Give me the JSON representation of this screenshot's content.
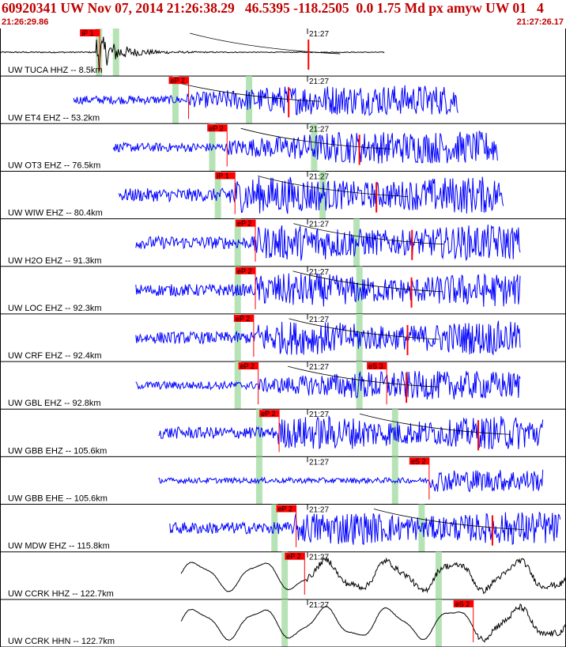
{
  "header": {
    "title": "60920341 UW Nov 07, 2014 21:26:38.29   46.5395 -118.2505  0.0 1.75 Md px amyw UW 01   4",
    "start_time": "21:26:29.86",
    "end_time": "21:27:26.17"
  },
  "colors": {
    "header_text": "#c00000",
    "trace_primary": "#000000",
    "trace_vertical": "#0000ff",
    "pick_flag": "#ff0000",
    "phase_window": "#b6e3b6",
    "panel_border": "#000000"
  },
  "chart_data": {
    "type": "line",
    "title": "60920341 UW Nov 07, 2014 21:26:38.29   46.5395 -118.2505  0.0 1.75 Md px amyw UW 01   4",
    "x_range": [
      "21:26:29.86",
      "21:27:26.17"
    ],
    "minute_mark": "21:27",
    "traces": [
      {
        "label": "UW TUCA HHZ -- 8.5km",
        "color": "black",
        "start": 0.0,
        "end": 0.68,
        "onset": 0.17,
        "amp": 0.42,
        "style": "impulse",
        "picks": [
          {
            "text": "iP 1",
            "pos": 0.158
          }
        ],
        "extra_ticks": [
          0.545
        ],
        "windows": [
          0.175,
          0.205
        ]
      },
      {
        "label": "UW ET4 EHZ -- 53.2km",
        "color": "blue",
        "start": 0.13,
        "end": 0.81,
        "onset": 0.33,
        "amp": 0.32,
        "style": "growing",
        "picks": [
          {
            "text": "eP 2",
            "pos": 0.315
          }
        ],
        "extra_ticks": [
          0.51
        ],
        "windows": [
          0.31,
          0.44
        ]
      },
      {
        "label": "UW OT3 EHZ -- 76.5km",
        "color": "blue",
        "start": 0.2,
        "end": 0.88,
        "onset": 0.4,
        "amp": 0.34,
        "style": "growing",
        "picks": [
          {
            "text": "eP 2",
            "pos": 0.383
          }
        ],
        "extra_ticks": [
          0.635
        ],
        "windows": [
          0.375,
          0.555
        ]
      },
      {
        "label": "UW WIW EHZ -- 80.4km",
        "color": "blue",
        "start": 0.21,
        "end": 0.89,
        "onset": 0.4,
        "amp": 0.4,
        "style": "sustained",
        "picks": [
          {
            "text": "iP 1",
            "pos": 0.397
          }
        ],
        "extra_ticks": [
          0.665
        ],
        "windows": [
          0.385,
          0.57
        ]
      },
      {
        "label": "UW H2O EHZ -- 91.3km",
        "color": "blue",
        "start": 0.24,
        "end": 0.92,
        "onset": 0.45,
        "amp": 0.38,
        "style": "sustained",
        "picks": [
          {
            "text": "eP 2",
            "pos": 0.433
          }
        ],
        "extra_ticks": [
          0.728
        ],
        "windows": [
          0.42,
          0.63
        ]
      },
      {
        "label": "UW LOC EHZ -- 92.3km",
        "color": "blue",
        "start": 0.24,
        "end": 0.92,
        "onset": 0.45,
        "amp": 0.36,
        "style": "sustained",
        "picks": [
          {
            "text": "eP 2",
            "pos": 0.433
          }
        ],
        "extra_ticks": [
          0.727
        ],
        "windows": [
          0.42,
          0.635
        ]
      },
      {
        "label": "UW CRF EHZ -- 92.4km",
        "color": "blue",
        "start": 0.24,
        "end": 0.92,
        "onset": 0.45,
        "amp": 0.36,
        "style": "sustained",
        "picks": [
          {
            "text": "eP 2",
            "pos": 0.43
          }
        ],
        "extra_ticks": [
          0.72
        ],
        "windows": [
          0.42,
          0.635
        ]
      },
      {
        "label": "UW GBL EHZ -- 92.8km",
        "color": "blue",
        "start": 0.24,
        "end": 0.92,
        "onset": 0.45,
        "amp": 0.3,
        "style": "growing",
        "picks": [
          {
            "text": "eP 2",
            "pos": 0.438
          },
          {
            "text": "eS 3",
            "pos": 0.665
          }
        ],
        "extra_ticks": [
          0.718
        ],
        "windows": [
          0.42,
          0.635
        ]
      },
      {
        "label": "UW GBB EHZ -- 105.6km",
        "color": "blue",
        "start": 0.28,
        "end": 0.96,
        "onset": 0.49,
        "amp": 0.36,
        "style": "sustained",
        "picks": [
          {
            "text": "eP 2",
            "pos": 0.475
          }
        ],
        "extra_ticks": [
          0.845
        ],
        "windows": [
          0.458,
          0.698
        ]
      },
      {
        "label": "UW GBB EHE -- 105.6km",
        "color": "blue",
        "start": 0.28,
        "end": 0.96,
        "onset": 0.76,
        "amp": 0.26,
        "style": "late",
        "picks": [
          {
            "text": "eS 2",
            "pos": 0.74
          }
        ],
        "extra_ticks": [],
        "windows": [
          0.458,
          0.698
        ]
      },
      {
        "label": "UW MDW EHZ -- 115.8km",
        "color": "blue",
        "start": 0.3,
        "end": 0.99,
        "onset": 0.52,
        "amp": 0.36,
        "style": "sustained",
        "picks": [
          {
            "text": "eP 2",
            "pos": 0.505
          }
        ],
        "extra_ticks": [
          0.87
        ],
        "windows": [
          0.485,
          0.745
        ]
      },
      {
        "label": "UW CCRK HHZ -- 122.7km",
        "color": "black",
        "start": 0.32,
        "end": 1.0,
        "onset": 0.54,
        "amp": 0.36,
        "style": "longperiod",
        "picks": [
          {
            "text": "eP 2",
            "pos": 0.52
          }
        ],
        "extra_ticks": [],
        "windows": [
          0.503,
          0.775
        ]
      },
      {
        "label": "UW CCRK HHN -- 122.7km",
        "color": "black",
        "start": 0.32,
        "end": 1.0,
        "onset": 0.84,
        "amp": 0.38,
        "style": "longperiod_late",
        "picks": [
          {
            "text": "eS 2",
            "pos": 0.818
          }
        ],
        "extra_ticks": [],
        "windows": [
          0.503,
          0.775
        ]
      }
    ]
  }
}
